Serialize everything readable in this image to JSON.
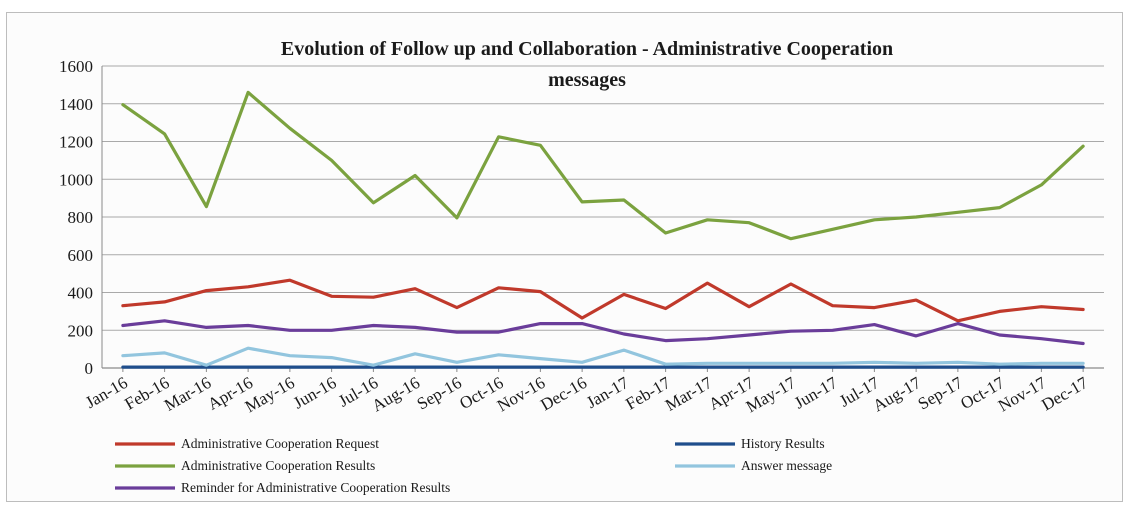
{
  "chart_data": {
    "type": "line",
    "title_line1": "Evolution of Follow up and Collaboration  - Administrative Cooperation",
    "title_line2": "messages",
    "xlabel": "",
    "ylabel": "",
    "ylim": [
      0,
      1600
    ],
    "y_ticks": [
      0,
      200,
      400,
      600,
      800,
      1000,
      1200,
      1400,
      1600
    ],
    "grid": true,
    "legend_position": "bottom",
    "categories": [
      "Jan-16",
      "Feb-16",
      "Mar-16",
      "Apr-16",
      "May-16",
      "Jun-16",
      "Jul-16",
      "Aug-16",
      "Sep-16",
      "Oct-16",
      "Nov-16",
      "Dec-16",
      "Jan-17",
      "Feb-17",
      "Mar-17",
      "Apr-17",
      "May-17",
      "Jun-17",
      "Jul-17",
      "Aug-17",
      "Sep-17",
      "Oct-17",
      "Nov-17",
      "Dec-17"
    ],
    "series": [
      {
        "name": "Administrative Cooperation Request",
        "color": "#c0392b",
        "values": [
          330,
          350,
          410,
          430,
          465,
          380,
          375,
          420,
          320,
          425,
          405,
          265,
          390,
          315,
          450,
          325,
          445,
          330,
          320,
          360,
          250,
          300,
          325,
          310
        ]
      },
      {
        "name": "History Results",
        "color": "#1f4e8c",
        "values": [
          5,
          5,
          5,
          5,
          5,
          5,
          5,
          5,
          5,
          5,
          5,
          5,
          5,
          5,
          5,
          5,
          5,
          5,
          5,
          5,
          5,
          5,
          5,
          5
        ]
      },
      {
        "name": "Administrative Cooperation Results",
        "color": "#7ba23f",
        "values": [
          1395,
          1240,
          855,
          1460,
          1270,
          1100,
          875,
          1020,
          795,
          1225,
          1180,
          880,
          890,
          715,
          785,
          770,
          685,
          735,
          785,
          800,
          825,
          850,
          970,
          1175
        ]
      },
      {
        "name": "Answer message",
        "color": "#92c5de",
        "values": [
          65,
          80,
          15,
          105,
          65,
          55,
          15,
          75,
          30,
          70,
          50,
          30,
          95,
          20,
          25,
          25,
          25,
          25,
          30,
          25,
          30,
          20,
          25,
          25
        ]
      },
      {
        "name": "Reminder for Administrative Cooperation Results",
        "color": "#6a3d9a",
        "values": [
          225,
          250,
          215,
          225,
          200,
          200,
          225,
          215,
          190,
          190,
          235,
          235,
          180,
          145,
          155,
          175,
          195,
          200,
          230,
          170,
          235,
          175,
          155,
          130
        ]
      }
    ]
  }
}
